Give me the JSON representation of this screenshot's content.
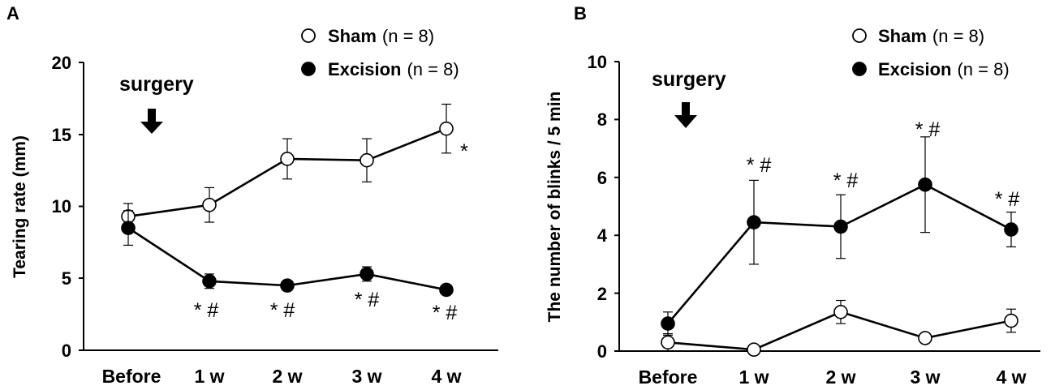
{
  "chart_data": [
    {
      "panel_label": "A",
      "type": "line",
      "title": "",
      "xlabel": "",
      "ylabel": "Tearing rate (mm)",
      "categories": [
        "Before",
        "1 w",
        "2 w",
        "3 w",
        "4 w"
      ],
      "ylim": [
        0,
        20
      ],
      "yticks": [
        "0",
        "5",
        "10",
        "15",
        "20"
      ],
      "series": [
        {
          "name": "Sham",
          "n_label": "(n = 8)",
          "marker": "open-circle",
          "values": [
            9.3,
            10.1,
            13.3,
            13.2,
            15.4
          ],
          "errors": [
            0.9,
            1.2,
            1.4,
            1.5,
            1.7
          ]
        },
        {
          "name": "Excision",
          "n_label": "(n = 8)",
          "marker": "filled-circle",
          "values": [
            8.5,
            4.8,
            4.5,
            5.3,
            4.2
          ],
          "errors": [
            1.2,
            0.5,
            0.0,
            0.5,
            0.0
          ]
        }
      ],
      "annotation_text": "surgery",
      "significance": [
        {
          "category": "1 w",
          "text": "* #"
        },
        {
          "category": "2 w",
          "text": "* #"
        },
        {
          "category": "3 w",
          "text": "* #"
        },
        {
          "category": "4 w",
          "text": "* #"
        },
        {
          "category": "4 w",
          "text": "*"
        }
      ],
      "legend_position": "top-right"
    },
    {
      "panel_label": "B",
      "type": "line",
      "title": "",
      "xlabel": "",
      "ylabel": "The number of blinks  / 5 min",
      "categories": [
        "Before",
        "1 w",
        "2 w",
        "3 w",
        "4 w"
      ],
      "ylim": [
        0,
        10
      ],
      "yticks": [
        "0",
        "2",
        "4",
        "6",
        "8",
        "10"
      ],
      "series": [
        {
          "name": "Sham",
          "n_label": "(n = 8)",
          "marker": "open-circle",
          "values": [
            0.3,
            0.05,
            1.35,
            0.45,
            1.05
          ],
          "errors": [
            0.3,
            0.0,
            0.4,
            0.0,
            0.4
          ]
        },
        {
          "name": "Excision",
          "n_label": "(n = 8)",
          "marker": "filled-circle",
          "values": [
            0.95,
            4.45,
            4.3,
            5.75,
            4.2
          ],
          "errors": [
            0.4,
            1.45,
            1.1,
            1.65,
            0.6
          ]
        }
      ],
      "annotation_text": "surgery",
      "significance": [
        {
          "category": "1 w",
          "text": "* #"
        },
        {
          "category": "2 w",
          "text": "* #"
        },
        {
          "category": "3 w",
          "text": "* #"
        },
        {
          "category": "4 w",
          "text": "* #"
        }
      ],
      "legend_position": "top-right"
    }
  ]
}
